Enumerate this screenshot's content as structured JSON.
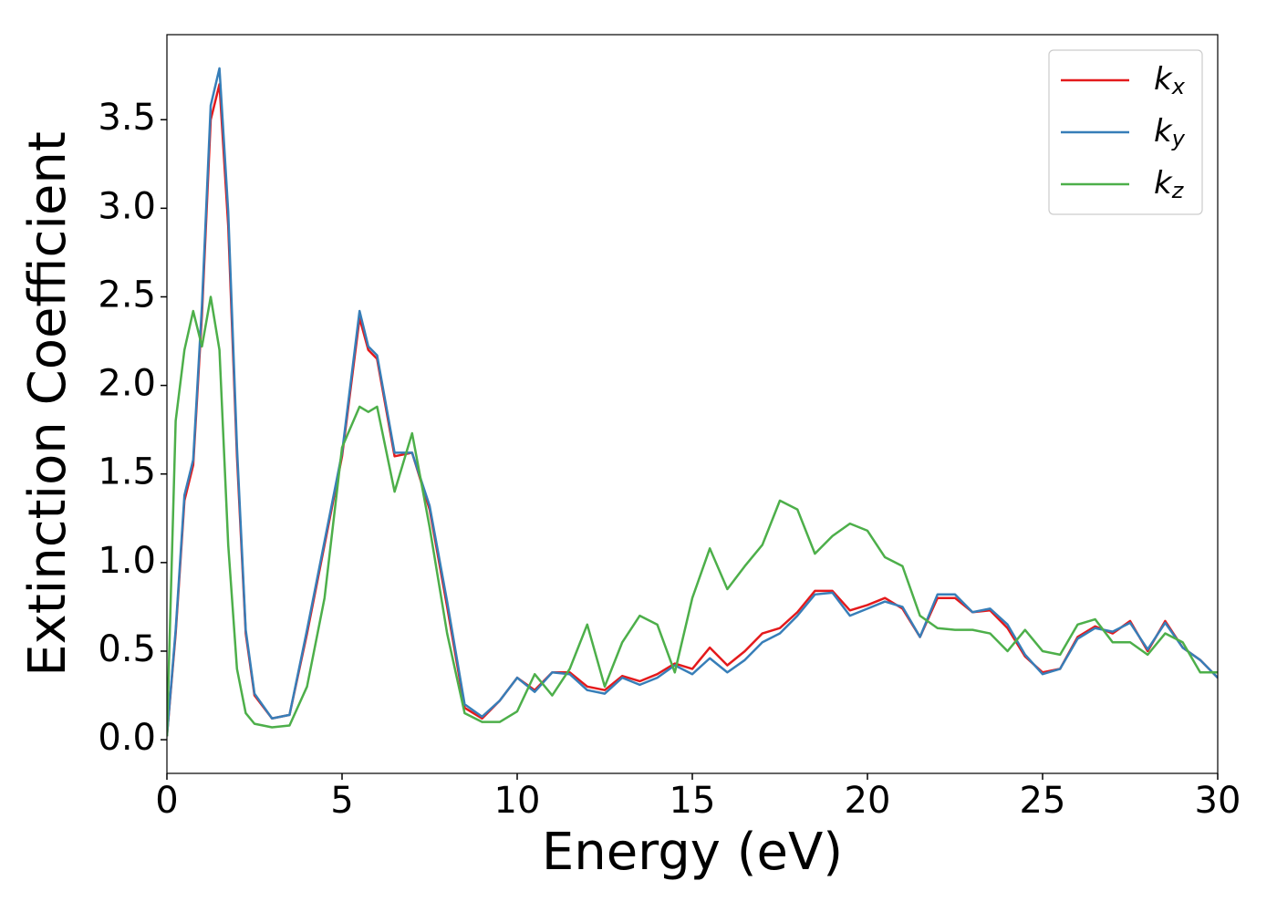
{
  "chart_data": {
    "type": "line",
    "xlabel": "Energy (eV)",
    "ylabel": "Extinction Coefficient",
    "x": [
      0,
      0.25,
      0.5,
      0.75,
      1,
      1.25,
      1.5,
      1.75,
      2,
      2.25,
      2.5,
      3,
      3.5,
      4,
      4.5,
      5,
      5.5,
      5.75,
      6,
      6.5,
      7,
      7.5,
      8,
      8.5,
      9,
      9.5,
      10,
      10.5,
      11,
      11.5,
      12,
      12.5,
      13,
      13.5,
      14,
      14.5,
      15,
      15.5,
      16,
      16.5,
      17,
      17.5,
      18,
      18.5,
      19,
      19.5,
      20,
      20.5,
      21,
      21.5,
      22,
      22.5,
      23,
      23.5,
      24,
      24.5,
      25,
      25.5,
      26,
      26.5,
      27,
      27.5,
      28,
      28.5,
      29,
      29.5,
      30
    ],
    "series": [
      {
        "name": "kx",
        "color": "#e41a1c",
        "values": [
          0.02,
          0.6,
          1.35,
          1.55,
          2.4,
          3.5,
          3.7,
          2.9,
          1.6,
          0.6,
          0.25,
          0.12,
          0.14,
          0.6,
          1.1,
          1.6,
          2.38,
          2.2,
          2.15,
          1.6,
          1.62,
          1.3,
          0.75,
          0.18,
          0.12,
          0.22,
          0.35,
          0.28,
          0.38,
          0.38,
          0.3,
          0.28,
          0.36,
          0.33,
          0.37,
          0.43,
          0.4,
          0.52,
          0.42,
          0.5,
          0.6,
          0.63,
          0.72,
          0.84,
          0.84,
          0.73,
          0.76,
          0.8,
          0.74,
          0.58,
          0.8,
          0.8,
          0.72,
          0.73,
          0.63,
          0.47,
          0.38,
          0.4,
          0.58,
          0.64,
          0.6,
          0.67,
          0.5,
          0.67,
          0.52,
          0.45,
          0.35
        ]
      },
      {
        "name": "ky",
        "color": "#377eb8",
        "values": [
          0.02,
          0.62,
          1.38,
          1.58,
          2.45,
          3.58,
          3.79,
          2.98,
          1.65,
          0.62,
          0.26,
          0.12,
          0.14,
          0.62,
          1.12,
          1.62,
          2.42,
          2.22,
          2.17,
          1.62,
          1.62,
          1.32,
          0.78,
          0.2,
          0.13,
          0.22,
          0.35,
          0.27,
          0.38,
          0.37,
          0.28,
          0.26,
          0.35,
          0.31,
          0.35,
          0.42,
          0.37,
          0.46,
          0.38,
          0.45,
          0.55,
          0.6,
          0.7,
          0.82,
          0.83,
          0.7,
          0.74,
          0.78,
          0.75,
          0.58,
          0.82,
          0.82,
          0.72,
          0.74,
          0.65,
          0.48,
          0.37,
          0.4,
          0.57,
          0.63,
          0.61,
          0.66,
          0.51,
          0.66,
          0.52,
          0.45,
          0.35
        ]
      },
      {
        "name": "kz",
        "color": "#4daf4a",
        "values": [
          0.02,
          1.8,
          2.2,
          2.42,
          2.22,
          2.5,
          2.2,
          1.1,
          0.4,
          0.15,
          0.09,
          0.07,
          0.08,
          0.3,
          0.8,
          1.65,
          1.88,
          1.85,
          1.88,
          1.4,
          1.73,
          1.2,
          0.6,
          0.15,
          0.1,
          0.1,
          0.16,
          0.37,
          0.25,
          0.4,
          0.65,
          0.3,
          0.55,
          0.7,
          0.65,
          0.38,
          0.8,
          1.08,
          0.85,
          0.98,
          1.1,
          1.35,
          1.3,
          1.05,
          1.15,
          1.22,
          1.18,
          1.03,
          0.98,
          0.7,
          0.63,
          0.62,
          0.62,
          0.6,
          0.5,
          0.62,
          0.5,
          0.48,
          0.65,
          0.68,
          0.55,
          0.55,
          0.48,
          0.6,
          0.55,
          0.38,
          0.38
        ]
      }
    ],
    "xlim": [
      0,
      30
    ],
    "xticks": [
      0,
      5,
      10,
      15,
      20,
      25,
      30
    ],
    "ylim": [
      -0.19,
      3.98
    ],
    "yticks": [
      {
        "value": 0,
        "label": "0.0"
      },
      0.5,
      {
        "value": 1,
        "label": "1.0"
      },
      1.5,
      {
        "value": 2,
        "label": "2.0"
      },
      2.5,
      {
        "value": 3,
        "label": "3.0"
      },
      3.5
    ],
    "legend": "upper right",
    "grid": false
  }
}
